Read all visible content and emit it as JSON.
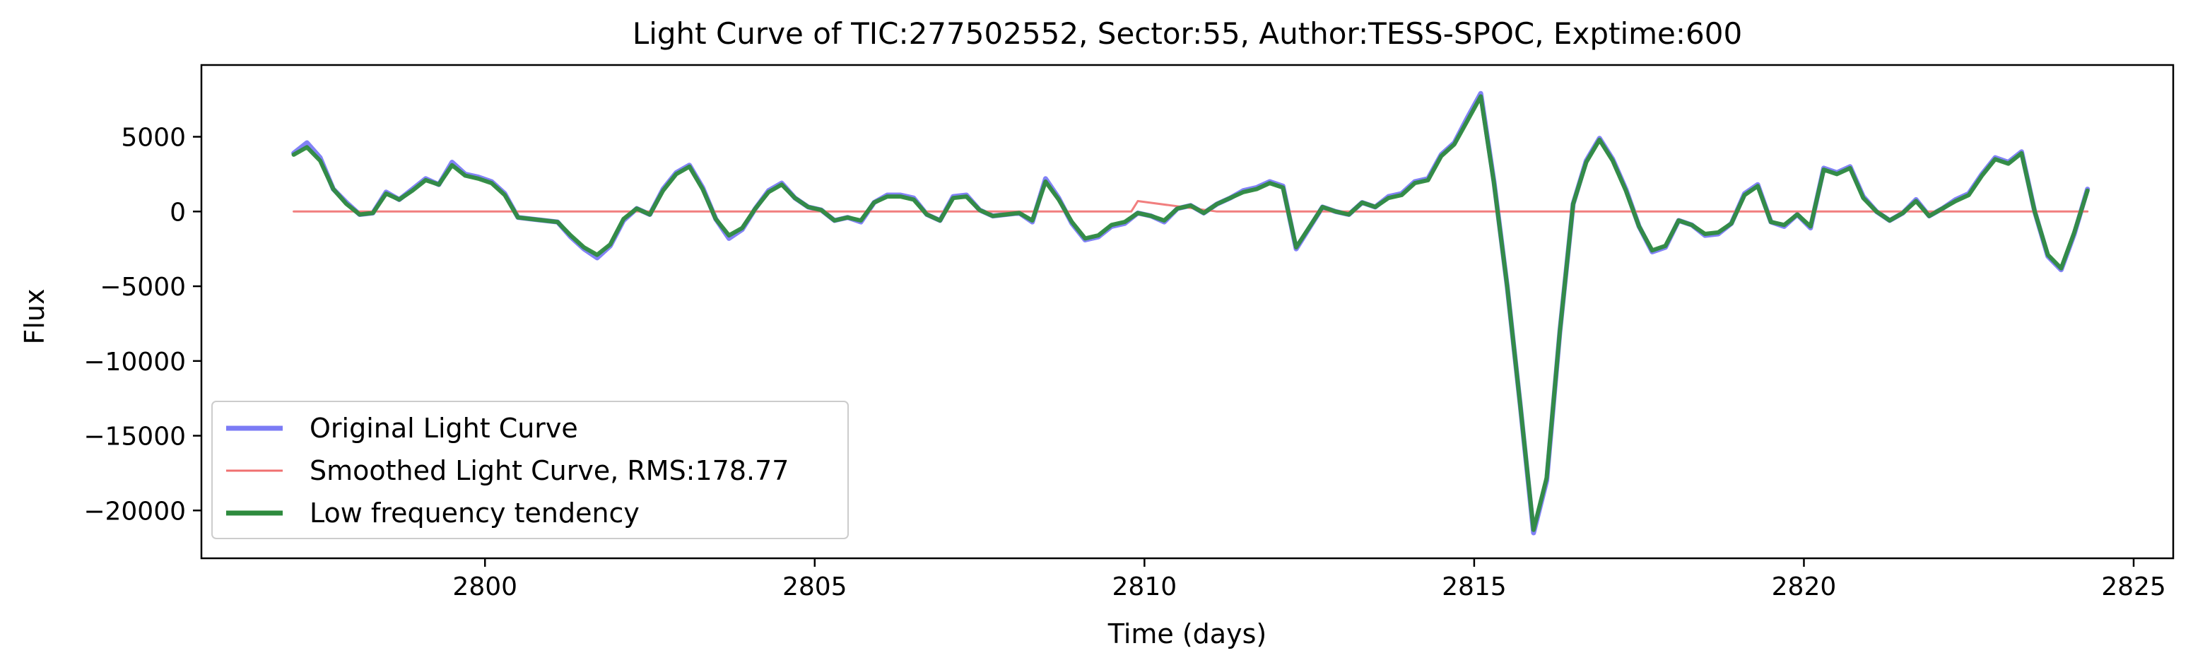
{
  "chart_data": {
    "type": "line",
    "title": "Light Curve of TIC:277502552, Sector:55, Author:TESS-SPOC, Exptime:600",
    "xlabel": "Time (days)",
    "ylabel": "Flux",
    "xlim": [
      2795.7,
      2825.6
    ],
    "ylim": [
      -23200,
      9800
    ],
    "xticks": [
      2800,
      2805,
      2810,
      2815,
      2820,
      2825
    ],
    "yticks": [
      5000,
      0,
      -5000,
      -10000,
      -15000,
      -20000
    ],
    "grid": false,
    "legend_position": "lower-left",
    "series": [
      {
        "name": "Original Light Curve",
        "color": "#7b7bf5",
        "points": [
          [
            2797.1,
            3900
          ],
          [
            2797.3,
            4600
          ],
          [
            2797.5,
            3600
          ],
          [
            2797.7,
            1500
          ],
          [
            2797.9,
            600
          ],
          [
            2798.1,
            -200
          ],
          [
            2798.3,
            -100
          ],
          [
            2798.5,
            1300
          ],
          [
            2798.7,
            800
          ],
          [
            2798.9,
            1500
          ],
          [
            2799.1,
            2200
          ],
          [
            2799.3,
            1800
          ],
          [
            2799.5,
            3300
          ],
          [
            2799.7,
            2500
          ],
          [
            2799.9,
            2300
          ],
          [
            2800.1,
            2000
          ],
          [
            2800.3,
            1200
          ],
          [
            2800.5,
            -400
          ],
          [
            2800.7,
            -500
          ],
          [
            2800.9,
            -600
          ],
          [
            2801.1,
            -700
          ],
          [
            2801.3,
            -1700
          ],
          [
            2801.5,
            -2500
          ],
          [
            2801.7,
            -3100
          ],
          [
            2801.9,
            -2300
          ],
          [
            2802.1,
            -600
          ],
          [
            2802.3,
            200
          ],
          [
            2802.5,
            -200
          ],
          [
            2802.7,
            1500
          ],
          [
            2802.9,
            2600
          ],
          [
            2803.1,
            3100
          ],
          [
            2803.3,
            1600
          ],
          [
            2803.5,
            -500
          ],
          [
            2803.7,
            -1800
          ],
          [
            2803.9,
            -1200
          ],
          [
            2804.1,
            200
          ],
          [
            2804.3,
            1400
          ],
          [
            2804.5,
            1900
          ],
          [
            2804.7,
            900
          ],
          [
            2804.9,
            300
          ],
          [
            2805.1,
            100
          ],
          [
            2805.3,
            -600
          ],
          [
            2805.5,
            -400
          ],
          [
            2805.7,
            -700
          ],
          [
            2805.9,
            600
          ],
          [
            2806.1,
            1100
          ],
          [
            2806.3,
            1100
          ],
          [
            2806.5,
            900
          ],
          [
            2806.7,
            -200
          ],
          [
            2806.9,
            -600
          ],
          [
            2807.1,
            1000
          ],
          [
            2807.3,
            1100
          ],
          [
            2807.5,
            100
          ],
          [
            2807.7,
            -300
          ],
          [
            2807.9,
            -200
          ],
          [
            2808.1,
            -100
          ],
          [
            2808.3,
            -700
          ],
          [
            2808.5,
            2200
          ],
          [
            2808.7,
            900
          ],
          [
            2808.9,
            -800
          ],
          [
            2809.1,
            -1900
          ],
          [
            2809.3,
            -1700
          ],
          [
            2809.5,
            -1000
          ],
          [
            2809.7,
            -800
          ],
          [
            2809.9,
            -100
          ],
          [
            2810.1,
            -300
          ],
          [
            2810.3,
            -700
          ],
          [
            2810.5,
            200
          ],
          [
            2810.7,
            400
          ],
          [
            2810.9,
            -100
          ],
          [
            2811.1,
            500
          ],
          [
            2811.3,
            900
          ],
          [
            2811.5,
            1400
          ],
          [
            2811.7,
            1600
          ],
          [
            2811.9,
            2000
          ],
          [
            2812.1,
            1700
          ],
          [
            2812.3,
            -2500
          ],
          [
            2812.7,
            300
          ],
          [
            2812.9,
            0
          ],
          [
            2813.1,
            -200
          ],
          [
            2813.3,
            600
          ],
          [
            2813.5,
            300
          ],
          [
            2813.7,
            1000
          ],
          [
            2813.9,
            1200
          ],
          [
            2814.1,
            2000
          ],
          [
            2814.3,
            2200
          ],
          [
            2814.5,
            3800
          ],
          [
            2814.7,
            4600
          ],
          [
            2814.9,
            6300
          ],
          [
            2815.1,
            7900
          ],
          [
            2815.3,
            2000
          ],
          [
            2815.5,
            -5000
          ],
          [
            2815.7,
            -13000
          ],
          [
            2815.9,
            -21500
          ],
          [
            2816.1,
            -18000
          ],
          [
            2816.3,
            -8000
          ],
          [
            2816.5,
            500
          ],
          [
            2816.7,
            3400
          ],
          [
            2816.9,
            4900
          ],
          [
            2817.1,
            3500
          ],
          [
            2817.3,
            1500
          ],
          [
            2817.5,
            -1000
          ],
          [
            2817.7,
            -2700
          ],
          [
            2817.9,
            -2400
          ],
          [
            2818.1,
            -600
          ],
          [
            2818.3,
            -900
          ],
          [
            2818.5,
            -1600
          ],
          [
            2818.7,
            -1500
          ],
          [
            2818.9,
            -800
          ],
          [
            2819.1,
            1200
          ],
          [
            2819.3,
            1800
          ],
          [
            2819.5,
            -700
          ],
          [
            2819.7,
            -1000
          ],
          [
            2819.9,
            -200
          ],
          [
            2820.1,
            -1100
          ],
          [
            2820.3,
            2900
          ],
          [
            2820.5,
            2600
          ],
          [
            2820.7,
            3000
          ],
          [
            2820.9,
            1000
          ],
          [
            2821.1,
            0
          ],
          [
            2821.3,
            -600
          ],
          [
            2821.5,
            -100
          ],
          [
            2821.7,
            800
          ],
          [
            2821.9,
            -300
          ],
          [
            2822.1,
            200
          ],
          [
            2822.3,
            800
          ],
          [
            2822.5,
            1200
          ],
          [
            2822.7,
            2500
          ],
          [
            2822.9,
            3600
          ],
          [
            2823.1,
            3300
          ],
          [
            2823.3,
            4000
          ],
          [
            2823.5,
            0
          ],
          [
            2823.7,
            -3000
          ],
          [
            2823.9,
            -3900
          ],
          [
            2824.1,
            -1500
          ],
          [
            2824.3,
            1500
          ]
        ]
      },
      {
        "name": "Smoothed Light Curve, RMS:178.77",
        "color": "#f07070",
        "points": [
          [
            2797.1,
            0
          ],
          [
            2809.8,
            0
          ],
          [
            2809.9,
            700
          ],
          [
            2811.1,
            0
          ],
          [
            2824.3,
            0
          ]
        ]
      },
      {
        "name": "Low frequency tendency",
        "color": "#2e8b3e",
        "points": [
          [
            2797.1,
            3800
          ],
          [
            2797.3,
            4300
          ],
          [
            2797.5,
            3400
          ],
          [
            2797.7,
            1500
          ],
          [
            2797.9,
            500
          ],
          [
            2798.1,
            -200
          ],
          [
            2798.3,
            -100
          ],
          [
            2798.5,
            1200
          ],
          [
            2798.7,
            800
          ],
          [
            2798.9,
            1400
          ],
          [
            2799.1,
            2100
          ],
          [
            2799.3,
            1800
          ],
          [
            2799.5,
            3100
          ],
          [
            2799.7,
            2400
          ],
          [
            2799.9,
            2200
          ],
          [
            2800.1,
            1900
          ],
          [
            2800.3,
            1100
          ],
          [
            2800.5,
            -400
          ],
          [
            2800.7,
            -500
          ],
          [
            2800.9,
            -600
          ],
          [
            2801.1,
            -700
          ],
          [
            2801.3,
            -1600
          ],
          [
            2801.5,
            -2400
          ],
          [
            2801.7,
            -2900
          ],
          [
            2801.9,
            -2200
          ],
          [
            2802.1,
            -500
          ],
          [
            2802.3,
            200
          ],
          [
            2802.5,
            -200
          ],
          [
            2802.7,
            1400
          ],
          [
            2802.9,
            2500
          ],
          [
            2803.1,
            3000
          ],
          [
            2803.3,
            1500
          ],
          [
            2803.5,
            -500
          ],
          [
            2803.7,
            -1600
          ],
          [
            2803.9,
            -1100
          ],
          [
            2804.1,
            200
          ],
          [
            2804.3,
            1300
          ],
          [
            2804.5,
            1800
          ],
          [
            2804.7,
            900
          ],
          [
            2804.9,
            300
          ],
          [
            2805.1,
            100
          ],
          [
            2805.3,
            -600
          ],
          [
            2805.5,
            -400
          ],
          [
            2805.7,
            -600
          ],
          [
            2805.9,
            600
          ],
          [
            2806.1,
            1000
          ],
          [
            2806.3,
            1000
          ],
          [
            2806.5,
            800
          ],
          [
            2806.7,
            -200
          ],
          [
            2806.9,
            -600
          ],
          [
            2807.1,
            900
          ],
          [
            2807.3,
            1000
          ],
          [
            2807.5,
            100
          ],
          [
            2807.7,
            -300
          ],
          [
            2807.9,
            -200
          ],
          [
            2808.1,
            -100
          ],
          [
            2808.3,
            -600
          ],
          [
            2808.5,
            2000
          ],
          [
            2808.7,
            800
          ],
          [
            2808.9,
            -700
          ],
          [
            2809.1,
            -1800
          ],
          [
            2809.3,
            -1600
          ],
          [
            2809.5,
            -900
          ],
          [
            2809.7,
            -700
          ],
          [
            2809.9,
            -100
          ],
          [
            2810.1,
            -300
          ],
          [
            2810.3,
            -600
          ],
          [
            2810.5,
            200
          ],
          [
            2810.7,
            400
          ],
          [
            2810.9,
            -100
          ],
          [
            2811.1,
            500
          ],
          [
            2811.3,
            900
          ],
          [
            2811.5,
            1300
          ],
          [
            2811.7,
            1500
          ],
          [
            2811.9,
            1900
          ],
          [
            2812.1,
            1600
          ],
          [
            2812.3,
            -2400
          ],
          [
            2812.7,
            300
          ],
          [
            2812.9,
            0
          ],
          [
            2813.1,
            -200
          ],
          [
            2813.3,
            600
          ],
          [
            2813.5,
            300
          ],
          [
            2813.7,
            900
          ],
          [
            2813.9,
            1100
          ],
          [
            2814.1,
            1900
          ],
          [
            2814.3,
            2100
          ],
          [
            2814.5,
            3700
          ],
          [
            2814.7,
            4500
          ],
          [
            2814.9,
            6100
          ],
          [
            2815.1,
            7700
          ],
          [
            2815.3,
            1900
          ],
          [
            2815.5,
            -5000
          ],
          [
            2815.7,
            -13000
          ],
          [
            2815.9,
            -21300
          ],
          [
            2816.1,
            -17800
          ],
          [
            2816.3,
            -8000
          ],
          [
            2816.5,
            500
          ],
          [
            2816.7,
            3300
          ],
          [
            2816.9,
            4800
          ],
          [
            2817.1,
            3400
          ],
          [
            2817.3,
            1400
          ],
          [
            2817.5,
            -1000
          ],
          [
            2817.7,
            -2600
          ],
          [
            2817.9,
            -2300
          ],
          [
            2818.1,
            -600
          ],
          [
            2818.3,
            -900
          ],
          [
            2818.5,
            -1500
          ],
          [
            2818.7,
            -1400
          ],
          [
            2818.9,
            -800
          ],
          [
            2819.1,
            1100
          ],
          [
            2819.3,
            1700
          ],
          [
            2819.5,
            -700
          ],
          [
            2819.7,
            -900
          ],
          [
            2819.9,
            -200
          ],
          [
            2820.1,
            -1000
          ],
          [
            2820.3,
            2800
          ],
          [
            2820.5,
            2500
          ],
          [
            2820.7,
            2900
          ],
          [
            2820.9,
            900
          ],
          [
            2821.1,
            0
          ],
          [
            2821.3,
            -600
          ],
          [
            2821.5,
            -100
          ],
          [
            2821.7,
            700
          ],
          [
            2821.9,
            -300
          ],
          [
            2822.1,
            200
          ],
          [
            2822.3,
            700
          ],
          [
            2822.5,
            1100
          ],
          [
            2822.7,
            2400
          ],
          [
            2822.9,
            3500
          ],
          [
            2823.1,
            3200
          ],
          [
            2823.3,
            3900
          ],
          [
            2823.5,
            0
          ],
          [
            2823.7,
            -2900
          ],
          [
            2823.9,
            -3800
          ],
          [
            2824.1,
            -1400
          ],
          [
            2824.3,
            1400
          ]
        ]
      }
    ],
    "legend": [
      {
        "label": "Original Light Curve",
        "color": "#7b7bf5"
      },
      {
        "label": "Smoothed Light Curve, RMS:178.77",
        "color": "#f07070"
      },
      {
        "label": "Low frequency tendency",
        "color": "#2e8b3e"
      }
    ]
  }
}
